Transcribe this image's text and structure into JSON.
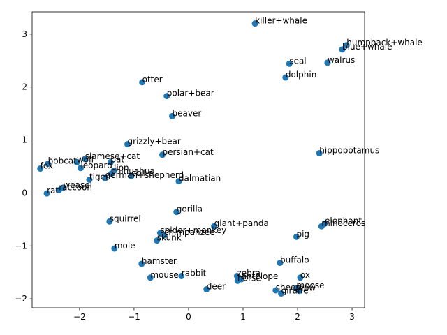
{
  "chart_data": {
    "type": "scatter",
    "title": "",
    "xlabel": "",
    "ylabel": "",
    "xlim": [
      -2.87,
      3.23
    ],
    "ylim": [
      -2.17,
      3.42
    ],
    "xticks": [
      -2,
      -1,
      0,
      1,
      2,
      3
    ],
    "yticks": [
      -2,
      -1,
      0,
      1,
      2,
      3
    ],
    "xtick_labels": [
      "−2",
      "−1",
      "0",
      "1",
      "2",
      "3"
    ],
    "ytick_labels": [
      "−2",
      "−1",
      "0",
      "1",
      "2",
      "3"
    ],
    "grid": false,
    "legend": "none",
    "marker_color": "#1f77b4",
    "points": [
      {
        "label": "killer+whale",
        "x": 1.22,
        "y": 3.2
      },
      {
        "label": "humpback+whale",
        "x": 2.9,
        "y": 2.79
      },
      {
        "label": "blue+whale",
        "x": 2.82,
        "y": 2.71
      },
      {
        "label": "walrus",
        "x": 2.55,
        "y": 2.46
      },
      {
        "label": "seal",
        "x": 1.85,
        "y": 2.44
      },
      {
        "label": "dolphin",
        "x": 1.78,
        "y": 2.18
      },
      {
        "label": "otter",
        "x": -0.85,
        "y": 2.09
      },
      {
        "label": "polar+bear",
        "x": -0.4,
        "y": 1.83
      },
      {
        "label": "beaver",
        "x": -0.3,
        "y": 1.45
      },
      {
        "label": "grizzly+bear",
        "x": -1.12,
        "y": 0.92
      },
      {
        "label": "persian+cat",
        "x": -0.48,
        "y": 0.72
      },
      {
        "label": "hippopotamus",
        "x": 2.4,
        "y": 0.75
      },
      {
        "label": "siamese+cat",
        "x": -1.9,
        "y": 0.64
      },
      {
        "label": "bobcat",
        "x": -2.58,
        "y": 0.55
      },
      {
        "label": "wolf",
        "x": -2.05,
        "y": 0.58
      },
      {
        "label": "bat",
        "x": -1.43,
        "y": 0.58
      },
      {
        "label": "fox",
        "x": -2.72,
        "y": 0.46
      },
      {
        "label": "leopard",
        "x": -1.98,
        "y": 0.47
      },
      {
        "label": "lion",
        "x": -1.37,
        "y": 0.42
      },
      {
        "label": "chihuahua",
        "x": -1.42,
        "y": 0.36
      },
      {
        "label": "collie",
        "x": -1.05,
        "y": 0.32
      },
      {
        "label": "german+shepherd",
        "x": -1.53,
        "y": 0.28
      },
      {
        "label": "tiger",
        "x": -1.82,
        "y": 0.25
      },
      {
        "label": "dalmatian",
        "x": -0.18,
        "y": 0.22
      },
      {
        "label": "weasel",
        "x": -2.3,
        "y": 0.1
      },
      {
        "label": "raccoon",
        "x": -2.38,
        "y": 0.05
      },
      {
        "label": "rat",
        "x": -2.6,
        "y": -0.01
      },
      {
        "label": "gorilla",
        "x": -0.22,
        "y": -0.36
      },
      {
        "label": "squirrel",
        "x": -1.45,
        "y": -0.54
      },
      {
        "label": "elephant",
        "x": 2.5,
        "y": -0.58
      },
      {
        "label": "rhinoceros",
        "x": 2.44,
        "y": -0.63
      },
      {
        "label": "giant+panda",
        "x": 0.47,
        "y": -0.63
      },
      {
        "label": "spider+monkey",
        "x": -0.52,
        "y": -0.76
      },
      {
        "label": "chimpanzee",
        "x": -0.45,
        "y": -0.8
      },
      {
        "label": "pig",
        "x": 1.98,
        "y": -0.83
      },
      {
        "label": "skunk",
        "x": -0.58,
        "y": -0.9
      },
      {
        "label": "mole",
        "x": -1.36,
        "y": -1.05
      },
      {
        "label": "buffalo",
        "x": 1.68,
        "y": -1.32
      },
      {
        "label": "hamster",
        "x": -0.86,
        "y": -1.34
      },
      {
        "label": "rabbit",
        "x": -0.13,
        "y": -1.57
      },
      {
        "label": "mouse",
        "x": -0.7,
        "y": -1.6
      },
      {
        "label": "zebra",
        "x": 0.89,
        "y": -1.57
      },
      {
        "label": "horse",
        "x": 0.9,
        "y": -1.66
      },
      {
        "label": "antelope",
        "x": 0.97,
        "y": -1.63
      },
      {
        "label": "ox",
        "x": 2.05,
        "y": -1.6
      },
      {
        "label": "deer",
        "x": 0.33,
        "y": -1.82
      },
      {
        "label": "moose",
        "x": 1.98,
        "y": -1.8
      },
      {
        "label": "sheep",
        "x": 1.6,
        "y": -1.84
      },
      {
        "label": "cow",
        "x": 2.03,
        "y": -1.85
      },
      {
        "label": "giraffe",
        "x": 1.7,
        "y": -1.9
      }
    ]
  }
}
